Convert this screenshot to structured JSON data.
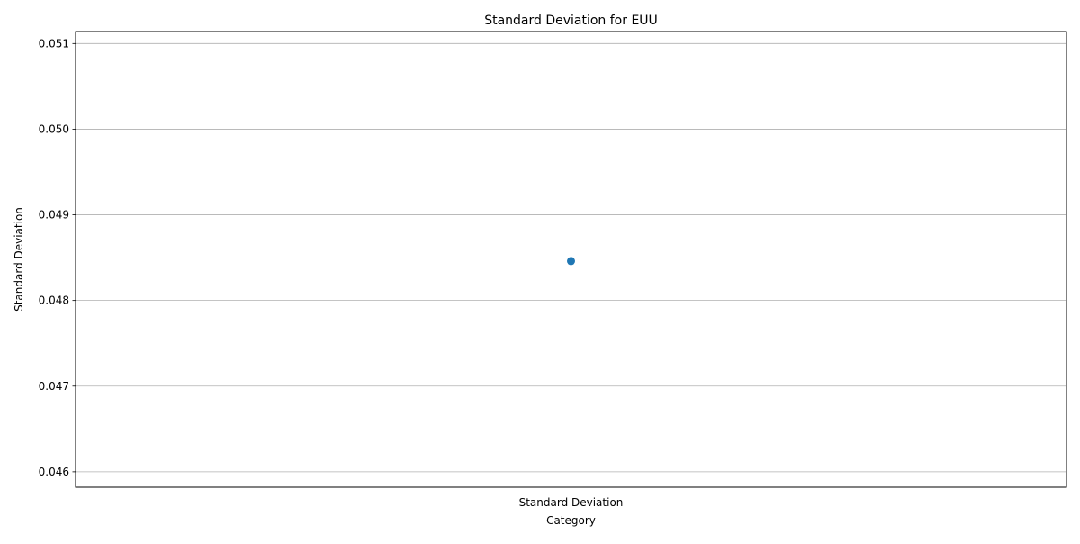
{
  "chart_data": {
    "type": "scatter",
    "title": "Standard Deviation for EUU",
    "xlabel": "Category",
    "ylabel": "Standard Deviation",
    "categories": [
      "Standard Deviation"
    ],
    "series": [
      {
        "values": [
          0.04846
        ]
      }
    ],
    "ylim": [
      0.04582,
      0.05114
    ],
    "yticks": [
      "0.046",
      "0.047",
      "0.048",
      "0.049",
      "0.050",
      "0.051"
    ],
    "ytick_values": [
      0.046,
      0.047,
      0.048,
      0.049,
      0.05,
      0.051
    ],
    "grid": true,
    "colors": {
      "marker": "#1f77b4",
      "grid": "#b0b0b0",
      "axis": "#000000"
    }
  }
}
